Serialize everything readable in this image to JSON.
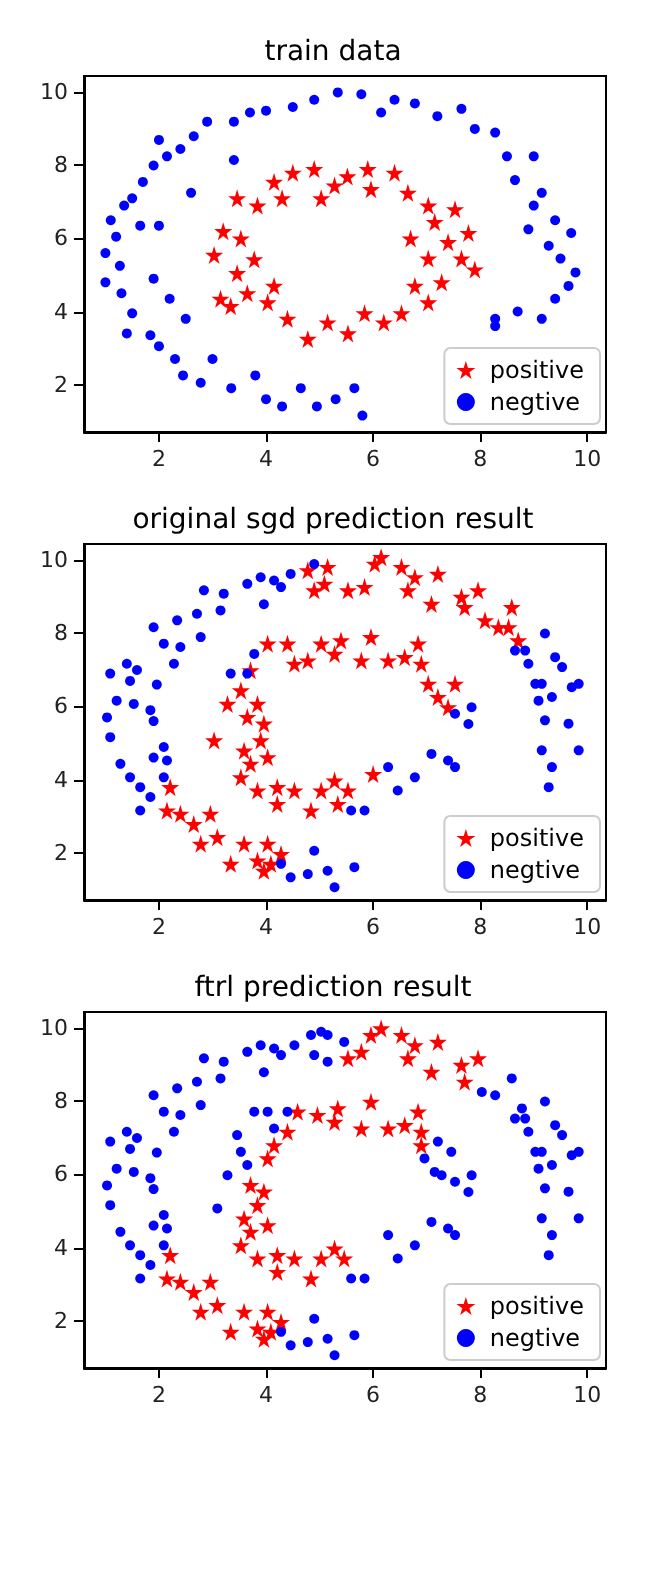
{
  "chart_data": [
    {
      "type": "scatter",
      "title": "train data",
      "xlim": [
        0.6,
        10.35
      ],
      "ylim": [
        0.7,
        10.45
      ],
      "xticks": [
        2,
        4,
        6,
        8,
        10
      ],
      "yticks": [
        2,
        4,
        6,
        8,
        10
      ],
      "grid": false,
      "legend": "bottom right",
      "series": [
        {
          "name": "positive",
          "color": "#ff0000",
          "marker": "star",
          "x": [
            3.15,
            3.03,
            3.2,
            3.46,
            3.84,
            4.15,
            4.5,
            4.9,
            5.28,
            5.52,
            5.9,
            6.4,
            6.65,
            7.03,
            7.53,
            7.78,
            7.4,
            7.03,
            7.65,
            7.9,
            7.28,
            6.78,
            7.03,
            6.53,
            6.2,
            5.84,
            5.53,
            5.15,
            4.78,
            4.4,
            4.03,
            3.65,
            3.46,
            3.78,
            3.53,
            3.34,
            4.15,
            4.3,
            5.03,
            5.96,
            7.15,
            6.7
          ],
          "values": [
            4.35,
            5.55,
            6.2,
            7.1,
            6.9,
            7.55,
            7.8,
            7.9,
            7.45,
            7.7,
            7.9,
            7.8,
            7.25,
            6.9,
            6.8,
            6.15,
            5.9,
            5.45,
            5.45,
            5.15,
            4.8,
            4.7,
            4.25,
            3.95,
            3.7,
            3.95,
            3.4,
            3.7,
            3.25,
            3.8,
            4.25,
            4.5,
            5.05,
            5.43,
            6.0,
            4.15,
            4.7,
            7.1,
            7.1,
            7.35,
            6.45,
            6.0
          ]
        },
        {
          "name": "negtive",
          "color": "#0000ff",
          "marker": "circle",
          "x": [
            5.34,
            5.78,
            4.9,
            4.5,
            4.0,
            3.7,
            3.4,
            2.9,
            2.65,
            2.4,
            2.15,
            2.0,
            1.9,
            1.7,
            1.5,
            1.35,
            1.1,
            1.2,
            1.0,
            1.27,
            1.0,
            1.3,
            1.5,
            1.4,
            1.84,
            2.0,
            2.3,
            2.45,
            2.78,
            3.0,
            3.35,
            3.8,
            4.0,
            4.3,
            4.65,
            4.95,
            5.3,
            5.8,
            5.65,
            8.28,
            8.7,
            9.15,
            9.4,
            9.65,
            9.78,
            9.5,
            9.28,
            9.7,
            9.4,
            9.0,
            8.9,
            9.15,
            8.65,
            9.0,
            8.5,
            8.28,
            7.9,
            7.65,
            7.2,
            6.78,
            6.4,
            6.15,
            1.65,
            2.0,
            1.9,
            2.2,
            2.5,
            2.6,
            3.4,
            8.28
          ],
          "values": [
            10.0,
            9.95,
            9.8,
            9.6,
            9.5,
            9.45,
            9.2,
            9.2,
            8.8,
            8.45,
            8.25,
            8.7,
            8.0,
            7.55,
            7.1,
            6.9,
            6.5,
            6.05,
            5.6,
            5.25,
            4.8,
            4.5,
            3.95,
            3.4,
            3.35,
            3.05,
            2.7,
            2.25,
            2.05,
            2.7,
            1.9,
            2.25,
            1.6,
            1.4,
            1.9,
            1.4,
            1.6,
            1.15,
            1.9,
            3.8,
            4.0,
            3.8,
            4.35,
            4.7,
            5.07,
            5.45,
            5.8,
            6.15,
            6.5,
            6.9,
            6.25,
            7.25,
            7.6,
            8.25,
            8.25,
            8.9,
            9.0,
            9.55,
            9.35,
            9.7,
            9.8,
            9.45,
            6.35,
            6.35,
            4.9,
            4.35,
            3.8,
            7.25,
            8.15,
            3.6
          ]
        }
      ]
    },
    {
      "type": "scatter",
      "title": "original sgd prediction result",
      "xlim": [
        0.6,
        10.35
      ],
      "ylim": [
        0.7,
        10.45
      ],
      "xticks": [
        2,
        4,
        6,
        8,
        10
      ],
      "yticks": [
        2,
        4,
        6,
        8,
        10
      ],
      "grid": false,
      "legend": "bottom right",
      "series": [
        {
          "name": "positive",
          "color": "#ff0000",
          "marker": "star",
          "x": [
            4.78,
            5.15,
            5.09,
            4.9,
            5.53,
            5.84,
            6.03,
            6.15,
            6.53,
            6.78,
            6.65,
            7.21,
            7.09,
            7.65,
            7.96,
            7.71,
            8.09,
            8.34,
            8.59,
            8.53,
            8.71,
            2.21,
            2.15,
            2.4,
            2.65,
            2.96,
            2.78,
            3.09,
            3.34,
            3.59,
            3.84,
            4.03,
            4.09,
            4.28,
            3.96,
            3.03,
            3.28,
            3.53,
            3.71,
            4.03,
            4.4,
            4.53,
            4.78,
            5.03,
            5.4,
            5.28,
            5.78,
            5.96,
            6.28,
            6.59,
            6.84,
            6.9,
            7.03,
            7.21,
            7.53,
            7.4,
            3.65,
            3.84,
            3.96,
            3.9,
            3.59,
            3.71,
            4.03,
            3.53,
            3.84,
            4.21,
            4.53,
            4.21,
            4.84,
            5.03,
            5.28,
            5.53,
            5.34,
            6.0
          ],
          "values": [
            9.73,
            9.82,
            9.36,
            9.18,
            9.18,
            9.27,
            9.91,
            10.09,
            9.82,
            9.54,
            9.18,
            9.63,
            8.81,
            9.0,
            9.18,
            8.72,
            8.36,
            8.17,
            8.72,
            8.17,
            7.81,
            3.79,
            3.15,
            3.06,
            2.78,
            3.06,
            2.24,
            2.42,
            1.69,
            2.24,
            1.78,
            2.24,
            1.69,
            1.96,
            1.5,
            5.07,
            6.07,
            6.44,
            6.99,
            7.72,
            7.72,
            7.17,
            7.26,
            7.72,
            7.81,
            7.44,
            7.26,
            7.9,
            7.26,
            7.35,
            7.72,
            7.17,
            6.62,
            6.26,
            6.62,
            5.98,
            5.71,
            6.07,
            5.53,
            5.07,
            4.79,
            4.43,
            4.61,
            4.06,
            3.7,
            3.79,
            3.7,
            3.33,
            3.15,
            3.7,
            3.97,
            3.7,
            3.33,
            4.15
          ]
        },
        {
          "name": "negtive",
          "color": "#0000ff",
          "marker": "circle",
          "x": [
            1.03,
            1.09,
            1.4,
            1.59,
            1.46,
            1.21,
            1.53,
            1.84,
            1.9,
            1.09,
            1.28,
            1.46,
            1.65,
            1.84,
            1.65,
            2.09,
            2.15,
            2.09,
            1.9,
            1.96,
            2.09,
            1.9,
            2.34,
            2.4,
            2.28,
            2.71,
            2.84,
            3.15,
            2.78,
            3.21,
            3.65,
            3.9,
            4.15,
            4.28,
            4.46,
            4.9,
            3.96,
            3.78,
            3.34,
            3.65,
            4.28,
            4.46,
            4.78,
            4.9,
            5.15,
            5.28,
            5.65,
            5.59,
            5.84,
            6.28,
            6.46,
            6.78,
            7.09,
            7.4,
            7.53,
            7.53,
            7.84,
            7.78,
            8.65,
            8.84,
            8.9,
            9.21,
            9.03,
            9.15,
            9.09,
            9.34,
            9.4,
            9.53,
            9.71,
            9.84,
            9.21,
            9.65,
            9.15,
            9.34,
            9.28,
            9.84
          ],
          "values": [
            5.7,
            6.9,
            7.17,
            7.0,
            6.7,
            6.16,
            6.07,
            5.9,
            5.6,
            5.16,
            4.43,
            4.06,
            3.79,
            3.52,
            3.15,
            4.06,
            4.52,
            4.89,
            4.6,
            6.6,
            7.72,
            8.17,
            8.36,
            7.63,
            7.17,
            8.54,
            9.18,
            8.63,
            7.9,
            9.09,
            9.36,
            9.54,
            9.45,
            9.27,
            9.63,
            9.9,
            8.8,
            7.44,
            6.9,
            6.9,
            1.69,
            1.32,
            1.41,
            2.05,
            1.5,
            1.05,
            1.6,
            3.15,
            3.15,
            4.34,
            3.7,
            4.06,
            4.7,
            4.52,
            4.34,
            5.8,
            5.98,
            5.52,
            7.53,
            7.53,
            7.17,
            8.0,
            6.62,
            6.62,
            6.16,
            6.26,
            7.35,
            7.08,
            6.53,
            6.62,
            5.62,
            5.53,
            4.8,
            4.34,
            3.79,
            4.8
          ]
        }
      ]
    },
    {
      "type": "scatter",
      "title": "ftrl prediction result",
      "xlim": [
        0.6,
        10.35
      ],
      "ylim": [
        0.7,
        10.45
      ],
      "xticks": [
        2,
        4,
        6,
        8,
        10
      ],
      "yticks": [
        2,
        4,
        6,
        8,
        10
      ],
      "grid": false,
      "legend": "bottom right",
      "series": [
        {
          "name": "positive",
          "color": "#ff0000",
          "marker": "star",
          "x": [
            5.53,
            5.78,
            5.96,
            6.15,
            6.53,
            6.78,
            6.65,
            7.21,
            7.09,
            7.65,
            7.96,
            7.71,
            2.21,
            2.15,
            2.4,
            2.65,
            2.96,
            2.78,
            3.09,
            3.34,
            3.59,
            3.84,
            4.03,
            4.09,
            4.28,
            3.96,
            4.03,
            4.15,
            4.4,
            4.59,
            4.96,
            5.34,
            5.28,
            5.78,
            5.96,
            6.28,
            6.59,
            6.84,
            6.9,
            6.9,
            3.71,
            3.96,
            3.84,
            3.59,
            3.71,
            4.03,
            3.53,
            3.84,
            4.21,
            4.53,
            4.21,
            4.84,
            5.03,
            5.28,
            5.46
          ],
          "values": [
            9.18,
            9.36,
            9.82,
            10.0,
            9.82,
            9.54,
            9.18,
            9.63,
            8.81,
            9.0,
            9.18,
            8.54,
            3.79,
            3.15,
            3.06,
            2.78,
            3.06,
            2.24,
            2.42,
            1.69,
            2.24,
            1.78,
            2.24,
            1.69,
            1.96,
            1.5,
            6.44,
            6.8,
            7.17,
            7.72,
            7.63,
            7.81,
            7.44,
            7.26,
            7.99,
            7.26,
            7.35,
            7.72,
            7.17,
            6.8,
            5.71,
            5.53,
            5.16,
            4.79,
            4.43,
            4.61,
            4.06,
            3.7,
            3.79,
            3.7,
            3.33,
            3.15,
            3.7,
            3.97,
            3.7
          ]
        },
        {
          "name": "negtive",
          "color": "#0000ff",
          "marker": "circle",
          "x": [
            1.03,
            1.09,
            1.4,
            1.59,
            1.46,
            1.21,
            1.53,
            1.84,
            1.9,
            1.09,
            1.28,
            1.46,
            1.65,
            1.84,
            1.65,
            2.09,
            2.15,
            2.09,
            1.9,
            1.96,
            2.09,
            1.9,
            2.34,
            2.4,
            2.28,
            2.71,
            2.84,
            3.15,
            2.78,
            3.21,
            3.65,
            3.9,
            4.15,
            4.28,
            4.53,
            4.84,
            5.03,
            5.15,
            4.9,
            5.15,
            5.46,
            3.96,
            8.03,
            8.28,
            8.59,
            8.78,
            3.46,
            3.53,
            3.28,
            3.65,
            3.78,
            4.03,
            4.15,
            4.4,
            3.09,
            7.21,
            7.46,
            7.15,
            7.28,
            6.96,
            4.28,
            4.46,
            4.78,
            4.9,
            5.15,
            5.28,
            5.65,
            5.59,
            5.84,
            6.28,
            6.46,
            6.78,
            7.09,
            7.4,
            7.53,
            7.53,
            7.84,
            7.78,
            8.65,
            8.84,
            8.9,
            9.21,
            9.03,
            9.15,
            9.09,
            9.34,
            9.4,
            9.53,
            9.71,
            9.84,
            9.21,
            9.65,
            9.15,
            9.34,
            9.28,
            9.84
          ],
          "values": [
            5.7,
            6.9,
            7.17,
            7.0,
            6.7,
            6.16,
            6.07,
            5.9,
            5.6,
            5.16,
            4.43,
            4.06,
            3.79,
            3.52,
            3.15,
            4.06,
            4.52,
            4.89,
            4.6,
            6.6,
            7.72,
            8.17,
            8.36,
            7.63,
            7.17,
            8.54,
            9.18,
            8.63,
            7.9,
            9.09,
            9.36,
            9.54,
            9.45,
            9.27,
            9.54,
            9.82,
            9.91,
            9.82,
            9.27,
            9.09,
            9.63,
            8.8,
            8.26,
            8.17,
            8.63,
            7.81,
            7.08,
            6.62,
            5.98,
            6.26,
            7.72,
            7.72,
            7.26,
            7.72,
            5.07,
            6.9,
            6.62,
            6.07,
            5.98,
            6.44,
            1.69,
            1.32,
            1.41,
            2.05,
            1.5,
            1.05,
            1.6,
            3.15,
            3.15,
            4.34,
            3.7,
            4.06,
            4.7,
            4.52,
            4.34,
            5.8,
            5.98,
            5.52,
            7.53,
            7.53,
            7.17,
            8.0,
            6.62,
            6.62,
            6.16,
            6.26,
            7.35,
            7.08,
            6.53,
            6.62,
            5.62,
            5.53,
            4.8,
            4.34,
            3.79,
            4.8
          ]
        }
      ]
    }
  ]
}
